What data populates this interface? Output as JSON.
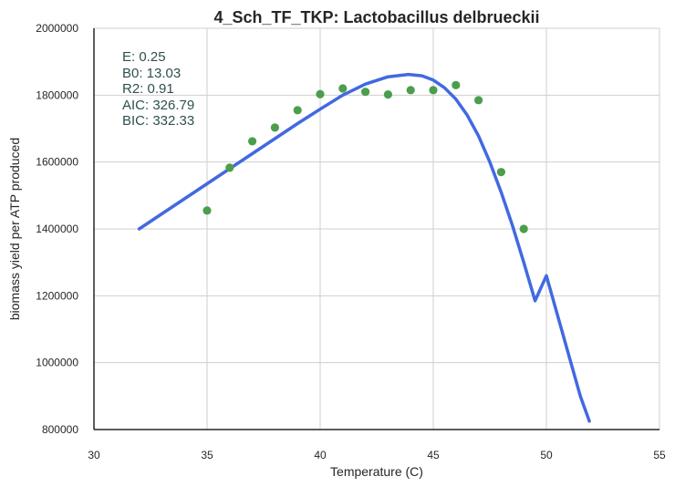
{
  "chart_data": {
    "type": "scatter",
    "title": "4_Sch_TF_TKP: Lactobacillus delbrueckii",
    "xlabel": "Temperature (C)",
    "ylabel": "biomass yield per ATP produced",
    "xlim": [
      30,
      55
    ],
    "ylim": [
      800000,
      2000000
    ],
    "x_ticks": [
      "30",
      "35",
      "40",
      "45",
      "50",
      "55"
    ],
    "y_ticks": [
      "800000",
      "1000000",
      "1200000",
      "1400000",
      "1600000",
      "1800000",
      "2000000"
    ],
    "grid": true,
    "colors": {
      "points": "#4c9e4c",
      "curve": "#4169e1",
      "grid": "#cfcfcf",
      "axis": "#262626",
      "stats": "#2f4f4f"
    },
    "series": [
      {
        "kind": "observed",
        "x": [
          35,
          36,
          37,
          38,
          39,
          40,
          41,
          42,
          43,
          44,
          45,
          46,
          47,
          48,
          49
        ],
        "values": [
          1455000,
          1583000,
          1662000,
          1703000,
          1755000,
          1803000,
          1820000,
          1810000,
          1802000,
          1815000,
          1815000,
          1830000,
          1785000,
          1570000,
          1400000
        ]
      },
      {
        "kind": "fitted",
        "x": [
          32,
          33,
          34,
          35,
          36,
          37,
          38,
          39,
          40,
          41,
          42,
          43,
          43.9,
          44.5,
          45,
          45.5,
          46,
          46.5,
          47,
          47.5,
          48,
          48.5,
          49,
          49.5,
          50,
          50.5,
          51,
          51.5,
          51.9
        ],
        "values": [
          1400000,
          1445000,
          1490000,
          1535000,
          1580000,
          1625000,
          1670000,
          1715000,
          1758000,
          1800000,
          1833000,
          1855000,
          1862000,
          1858000,
          1845000,
          1822000,
          1788000,
          1740000,
          1678000,
          1600000,
          1510000,
          1410000,
          1300000,
          1185000,
          1260000,
          1140000,
          1020000,
          900000,
          825000
        ]
      }
    ],
    "annotations": [
      "E:  0.25",
      "B0:  13.03",
      "R2:  0.91",
      "AIC: 326.79",
      "BIC: 332.33"
    ]
  }
}
